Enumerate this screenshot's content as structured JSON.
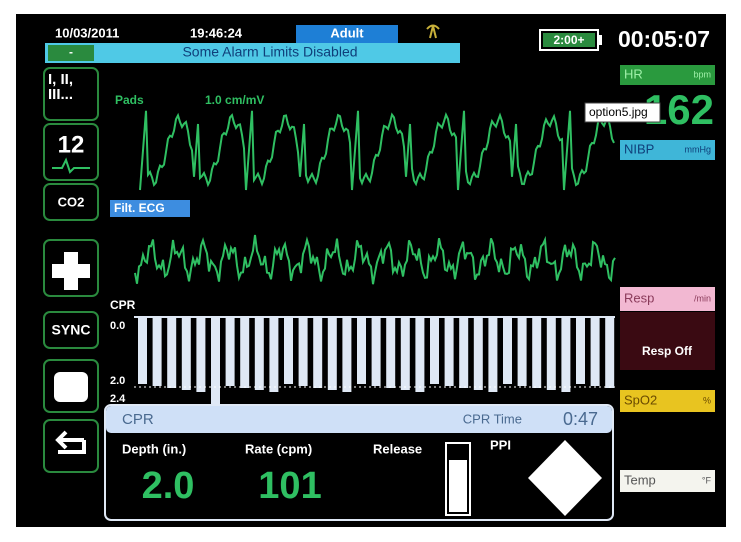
{
  "status_bar": {
    "date": "10/03/2011",
    "time": "19:46:24",
    "patient_mode": "Adult",
    "battery": "2:00+",
    "elapsed": "00:05:07",
    "alarm_button": "-",
    "alarm_message": "Some Alarm Limits Disabled"
  },
  "left_buttons": {
    "leads": "I, II, III...",
    "twelve_lead": "12",
    "co2": "CO2",
    "sync": "SYNC"
  },
  "waveforms": {
    "pads_label": "Pads",
    "pads_scale": "1.0 cm/mV",
    "filtered_label": "Filt. ECG",
    "cpr_label": "CPR",
    "cpr_scale_top": "0.0",
    "cpr_scale_target": "2.0",
    "cpr_scale_bottom": "2.4"
  },
  "vitals": {
    "hr_label": "HR",
    "hr_unit": "bpm",
    "hr_value": "162",
    "tooltip": "option5.jpg",
    "nibp_label": "NIBP",
    "nibp_unit": "mmHg",
    "resp_label": "Resp",
    "resp_unit": "/min",
    "resp_status": "Resp Off",
    "spo2_label": "SpO2",
    "spo2_unit": "%",
    "temp_label": "Temp",
    "temp_unit": "°F"
  },
  "cpr_panel": {
    "title": "CPR",
    "time_label": "CPR Time",
    "time_value": "0:47",
    "depth_label": "Depth (in.)",
    "depth_value": "2.0",
    "rate_label": "Rate (cpm)",
    "rate_value": "101",
    "release_label": "Release",
    "ppi_label": "PPI"
  }
}
